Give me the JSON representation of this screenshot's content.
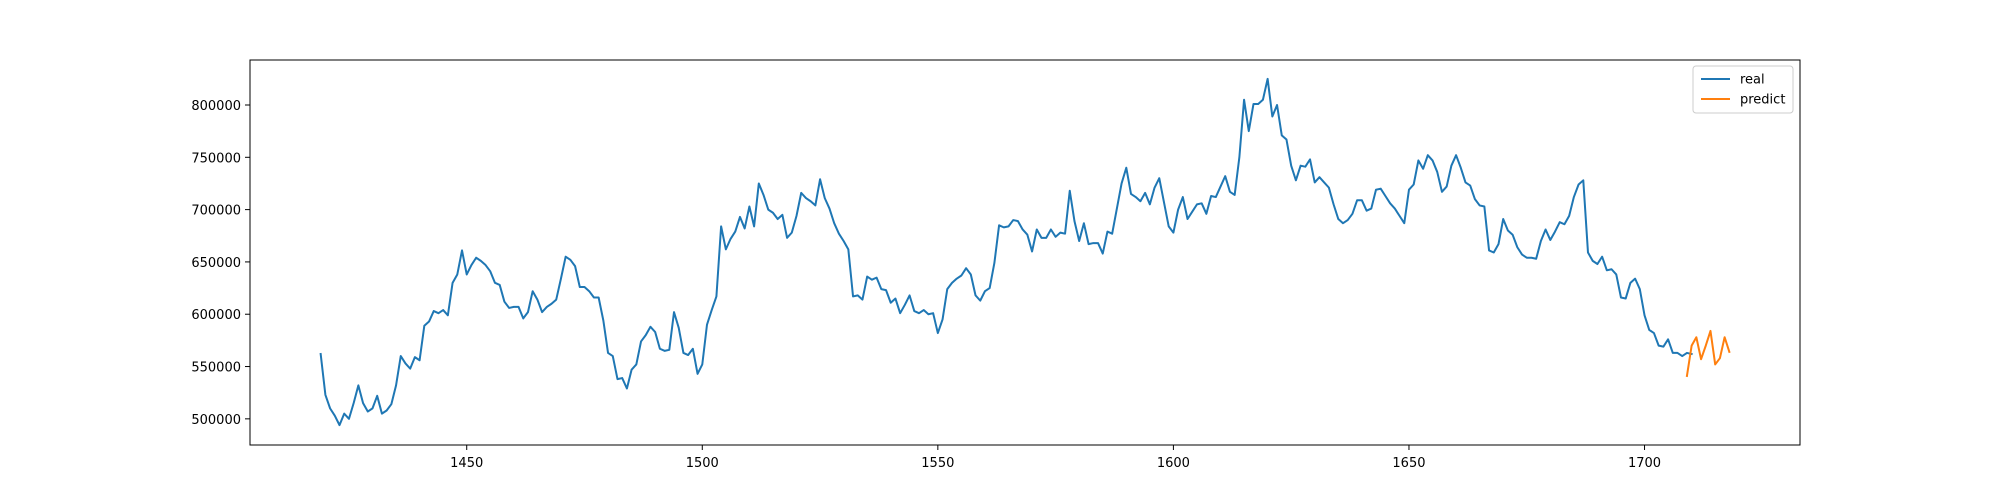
{
  "chart_data": {
    "type": "line",
    "title": "",
    "xlabel": "",
    "ylabel": "",
    "xlim": [
      1404,
      1733
    ],
    "ylim": [
      475000,
      843000
    ],
    "xticks": [
      1450,
      1500,
      1550,
      1600,
      1650,
      1700
    ],
    "yticks": [
      500000,
      550000,
      600000,
      650000,
      700000,
      750000,
      800000
    ],
    "legend": "top-right",
    "grid": false,
    "series": [
      {
        "name": "real",
        "color": "#1f77b4",
        "x_start": 1419,
        "x_step": 1,
        "values": [
          562000,
          523000,
          510000,
          503000,
          494000,
          505000,
          500000,
          515000,
          532000,
          515000,
          507000,
          510000,
          522000,
          505000,
          508000,
          514000,
          532000,
          560000,
          553000,
          548000,
          559000,
          556000,
          589000,
          593000,
          603000,
          601000,
          604000,
          599000,
          630000,
          638000,
          661000,
          638000,
          647000,
          654000,
          651000,
          647000,
          641000,
          630000,
          628000,
          612000,
          606000,
          607000,
          607000,
          596000,
          602000,
          622000,
          614000,
          602000,
          607000,
          610000,
          614000,
          634000,
          655000,
          652000,
          646000,
          626000,
          626000,
          622000,
          616000,
          616000,
          594000,
          563000,
          560000,
          538000,
          539000,
          529000,
          547000,
          552000,
          574000,
          580000,
          588000,
          583000,
          567000,
          565000,
          566000,
          602000,
          587000,
          563000,
          561000,
          567000,
          543000,
          552000,
          590000,
          604000,
          617000,
          684000,
          662000,
          672000,
          679000,
          693000,
          682000,
          703000,
          684000,
          725000,
          714000,
          700000,
          697000,
          691000,
          695000,
          673000,
          678000,
          694000,
          716000,
          711000,
          708000,
          704000,
          729000,
          711000,
          701000,
          687000,
          677000,
          670000,
          662000,
          617000,
          618000,
          614000,
          636000,
          633000,
          635000,
          624000,
          623000,
          611000,
          615000,
          601000,
          609000,
          618000,
          603000,
          601000,
          604000,
          600000,
          601000,
          582000,
          595000,
          624000,
          630000,
          634000,
          637000,
          644000,
          638000,
          618000,
          613000,
          622000,
          625000,
          649000,
          685000,
          683000,
          684000,
          690000,
          689000,
          681000,
          676000,
          660000,
          681000,
          673000,
          673000,
          681000,
          674000,
          678000,
          677000,
          718000,
          689000,
          670000,
          687000,
          667000,
          668000,
          668000,
          658000,
          679000,
          677000,
          701000,
          725000,
          740000,
          715000,
          712000,
          708000,
          716000,
          705000,
          721000,
          730000,
          707000,
          684000,
          678000,
          700000,
          712000,
          691000,
          698000,
          705000,
          706000,
          696000,
          713000,
          712000,
          722000,
          732000,
          717000,
          714000,
          750000,
          805000,
          775000,
          801000,
          801000,
          805000,
          825000,
          789000,
          800000,
          771000,
          767000,
          742000,
          728000,
          742000,
          741000,
          748000,
          726000,
          731000,
          726000,
          721000,
          705000,
          691000,
          687000,
          690000,
          696000,
          709000,
          709000,
          699000,
          701000,
          719000,
          720000,
          713000,
          706000,
          701000,
          694000,
          687000,
          719000,
          724000,
          747000,
          739000,
          752000,
          747000,
          736000,
          717000,
          722000,
          742000,
          752000,
          740000,
          726000,
          723000,
          710000,
          704000,
          703000,
          661000,
          659000,
          667000,
          691000,
          680000,
          676000,
          664000,
          657000,
          654000,
          654000,
          653000,
          670000,
          681000,
          671000,
          679000,
          688000,
          686000,
          694000,
          712000,
          724000,
          728000,
          659000,
          651000,
          648000,
          655000,
          642000,
          643000,
          638000,
          616000,
          615000,
          630000,
          634000,
          624000,
          599000,
          585000,
          582000,
          570000,
          569000,
          576000,
          563000,
          563000,
          560000,
          563000,
          562000
        ]
      },
      {
        "name": "predict",
        "color": "#ff7f0e",
        "x": [
          1709,
          1710,
          1711,
          1712,
          1713,
          1714,
          1715,
          1716,
          1717,
          1718
        ],
        "values": [
          541000,
          570000,
          578000,
          557000,
          570000,
          584000,
          552000,
          558000,
          578000,
          564000
        ]
      }
    ]
  }
}
